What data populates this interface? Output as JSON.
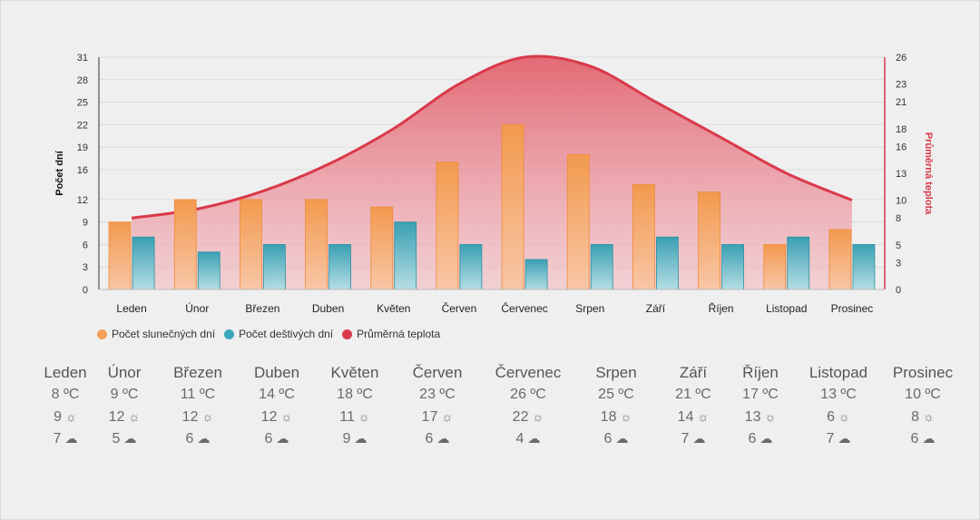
{
  "chart_data": {
    "type": "bar",
    "categories": [
      "Leden",
      "Únor",
      "Březen",
      "Duben",
      "Květen",
      "Červen",
      "Červenec",
      "Srpen",
      "Září",
      "Říjen",
      "Listopad",
      "Prosinec"
    ],
    "series": [
      {
        "name": "Počet slunečných dní",
        "type": "bar",
        "axis": "left",
        "color": "#f5a05a",
        "values": [
          9,
          12,
          12,
          12,
          11,
          17,
          22,
          18,
          14,
          13,
          6,
          8
        ]
      },
      {
        "name": "Počet deštivých dní",
        "type": "bar",
        "axis": "left",
        "color": "#3aa6b9",
        "values": [
          7,
          5,
          6,
          6,
          9,
          6,
          4,
          6,
          7,
          6,
          7,
          6
        ]
      },
      {
        "name": "Průměrná teplota",
        "type": "area",
        "axis": "right",
        "color": "#d93a4a",
        "values": [
          8,
          9,
          11,
          14,
          18,
          23,
          26,
          25,
          21,
          17,
          13,
          10
        ]
      }
    ],
    "ylabel": "Počet dní",
    "y2label": "Průměrná teplota",
    "ylim": [
      0,
      31
    ],
    "y2lim": [
      0,
      26
    ],
    "yticks": [
      0,
      3,
      6,
      9,
      12,
      16,
      19,
      22,
      25,
      28,
      31
    ],
    "y2ticks": [
      0,
      3,
      5,
      8,
      10,
      13,
      16,
      18,
      21,
      23,
      26
    ],
    "grid": true,
    "legend_position": "bottom-left"
  },
  "summary": [
    {
      "month": "Leden",
      "temp": "8 ºC",
      "sun": "9",
      "rain": "7"
    },
    {
      "month": "Únor",
      "temp": "9 ºC",
      "sun": "12",
      "rain": "5"
    },
    {
      "month": "Březen",
      "temp": "11 ºC",
      "sun": "12",
      "rain": "6"
    },
    {
      "month": "Duben",
      "temp": "14 ºC",
      "sun": "12",
      "rain": "6"
    },
    {
      "month": "Květen",
      "temp": "18 ºC",
      "sun": "11",
      "rain": "9"
    },
    {
      "month": "Červen",
      "temp": "23 ºC",
      "sun": "17",
      "rain": "6"
    },
    {
      "month": "Červenec",
      "temp": "26 ºC",
      "sun": "22",
      "rain": "4"
    },
    {
      "month": "Srpen",
      "temp": "25 ºC",
      "sun": "18",
      "rain": "6"
    },
    {
      "month": "Září",
      "temp": "21 ºC",
      "sun": "14",
      "rain": "7"
    },
    {
      "month": "Říjen",
      "temp": "17 ºC",
      "sun": "13",
      "rain": "6"
    },
    {
      "month": "Listopad",
      "temp": "13 ºC",
      "sun": "6",
      "rain": "7"
    },
    {
      "month": "Prosinec",
      "temp": "10 ºC",
      "sun": "8",
      "rain": "6"
    }
  ],
  "icons": {
    "sun": "sun-icon",
    "rain": "cloud-rain-icon"
  }
}
